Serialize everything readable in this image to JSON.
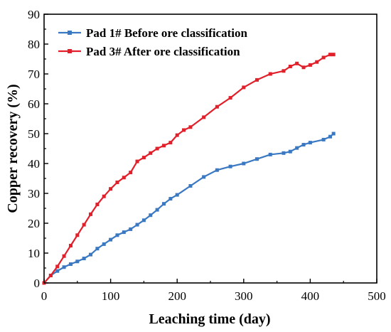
{
  "chart_data": {
    "type": "line",
    "title": "",
    "xlabel": "Leaching time (day)",
    "ylabel": "Copper recovery (%)",
    "xlim": [
      0,
      500
    ],
    "ylim": [
      0,
      90
    ],
    "xticks": [
      0,
      100,
      200,
      300,
      400,
      500
    ],
    "yticks": [
      0,
      10,
      20,
      30,
      40,
      50,
      60,
      70,
      80,
      90
    ],
    "grid": false,
    "legend_position": "top-left",
    "series": [
      {
        "name": "Pad 1# Before ore classification",
        "color": "#3a78c2",
        "marker": "square",
        "x": [
          0,
          10,
          20,
          30,
          40,
          50,
          60,
          70,
          80,
          90,
          100,
          110,
          120,
          130,
          140,
          150,
          160,
          170,
          180,
          190,
          200,
          220,
          240,
          260,
          280,
          300,
          320,
          340,
          360,
          370,
          380,
          390,
          400,
          420,
          430,
          435
        ],
        "y": [
          0,
          2.5,
          4,
          5.3,
          6.3,
          7.2,
          8.2,
          9.5,
          11.5,
          13,
          14.5,
          16,
          17,
          18,
          19.5,
          21,
          22.7,
          24.5,
          26.5,
          28.2,
          29.5,
          32.5,
          35.5,
          37.8,
          39,
          40,
          41.5,
          43,
          43.5,
          44,
          45.2,
          46.3,
          47,
          48,
          49,
          50
        ]
      },
      {
        "name": "Pad 3# After ore classification",
        "color": "#e0202a",
        "marker": "square",
        "x": [
          0,
          10,
          20,
          30,
          40,
          50,
          60,
          70,
          80,
          90,
          100,
          110,
          120,
          130,
          140,
          150,
          160,
          170,
          180,
          190,
          200,
          210,
          220,
          240,
          260,
          280,
          300,
          320,
          340,
          360,
          370,
          380,
          390,
          400,
          410,
          420,
          430,
          435
        ],
        "y": [
          0,
          2.5,
          5.5,
          9,
          12.5,
          16,
          19.5,
          23,
          26.3,
          29,
          31.5,
          33.7,
          35.3,
          37,
          40.7,
          42,
          43.5,
          45,
          46,
          47,
          49.5,
          51.2,
          52.2,
          55.5,
          59,
          62,
          65.5,
          68,
          70,
          71,
          72.5,
          73.5,
          72.2,
          73,
          74,
          75.5,
          76.5,
          76.5
        ]
      }
    ]
  }
}
